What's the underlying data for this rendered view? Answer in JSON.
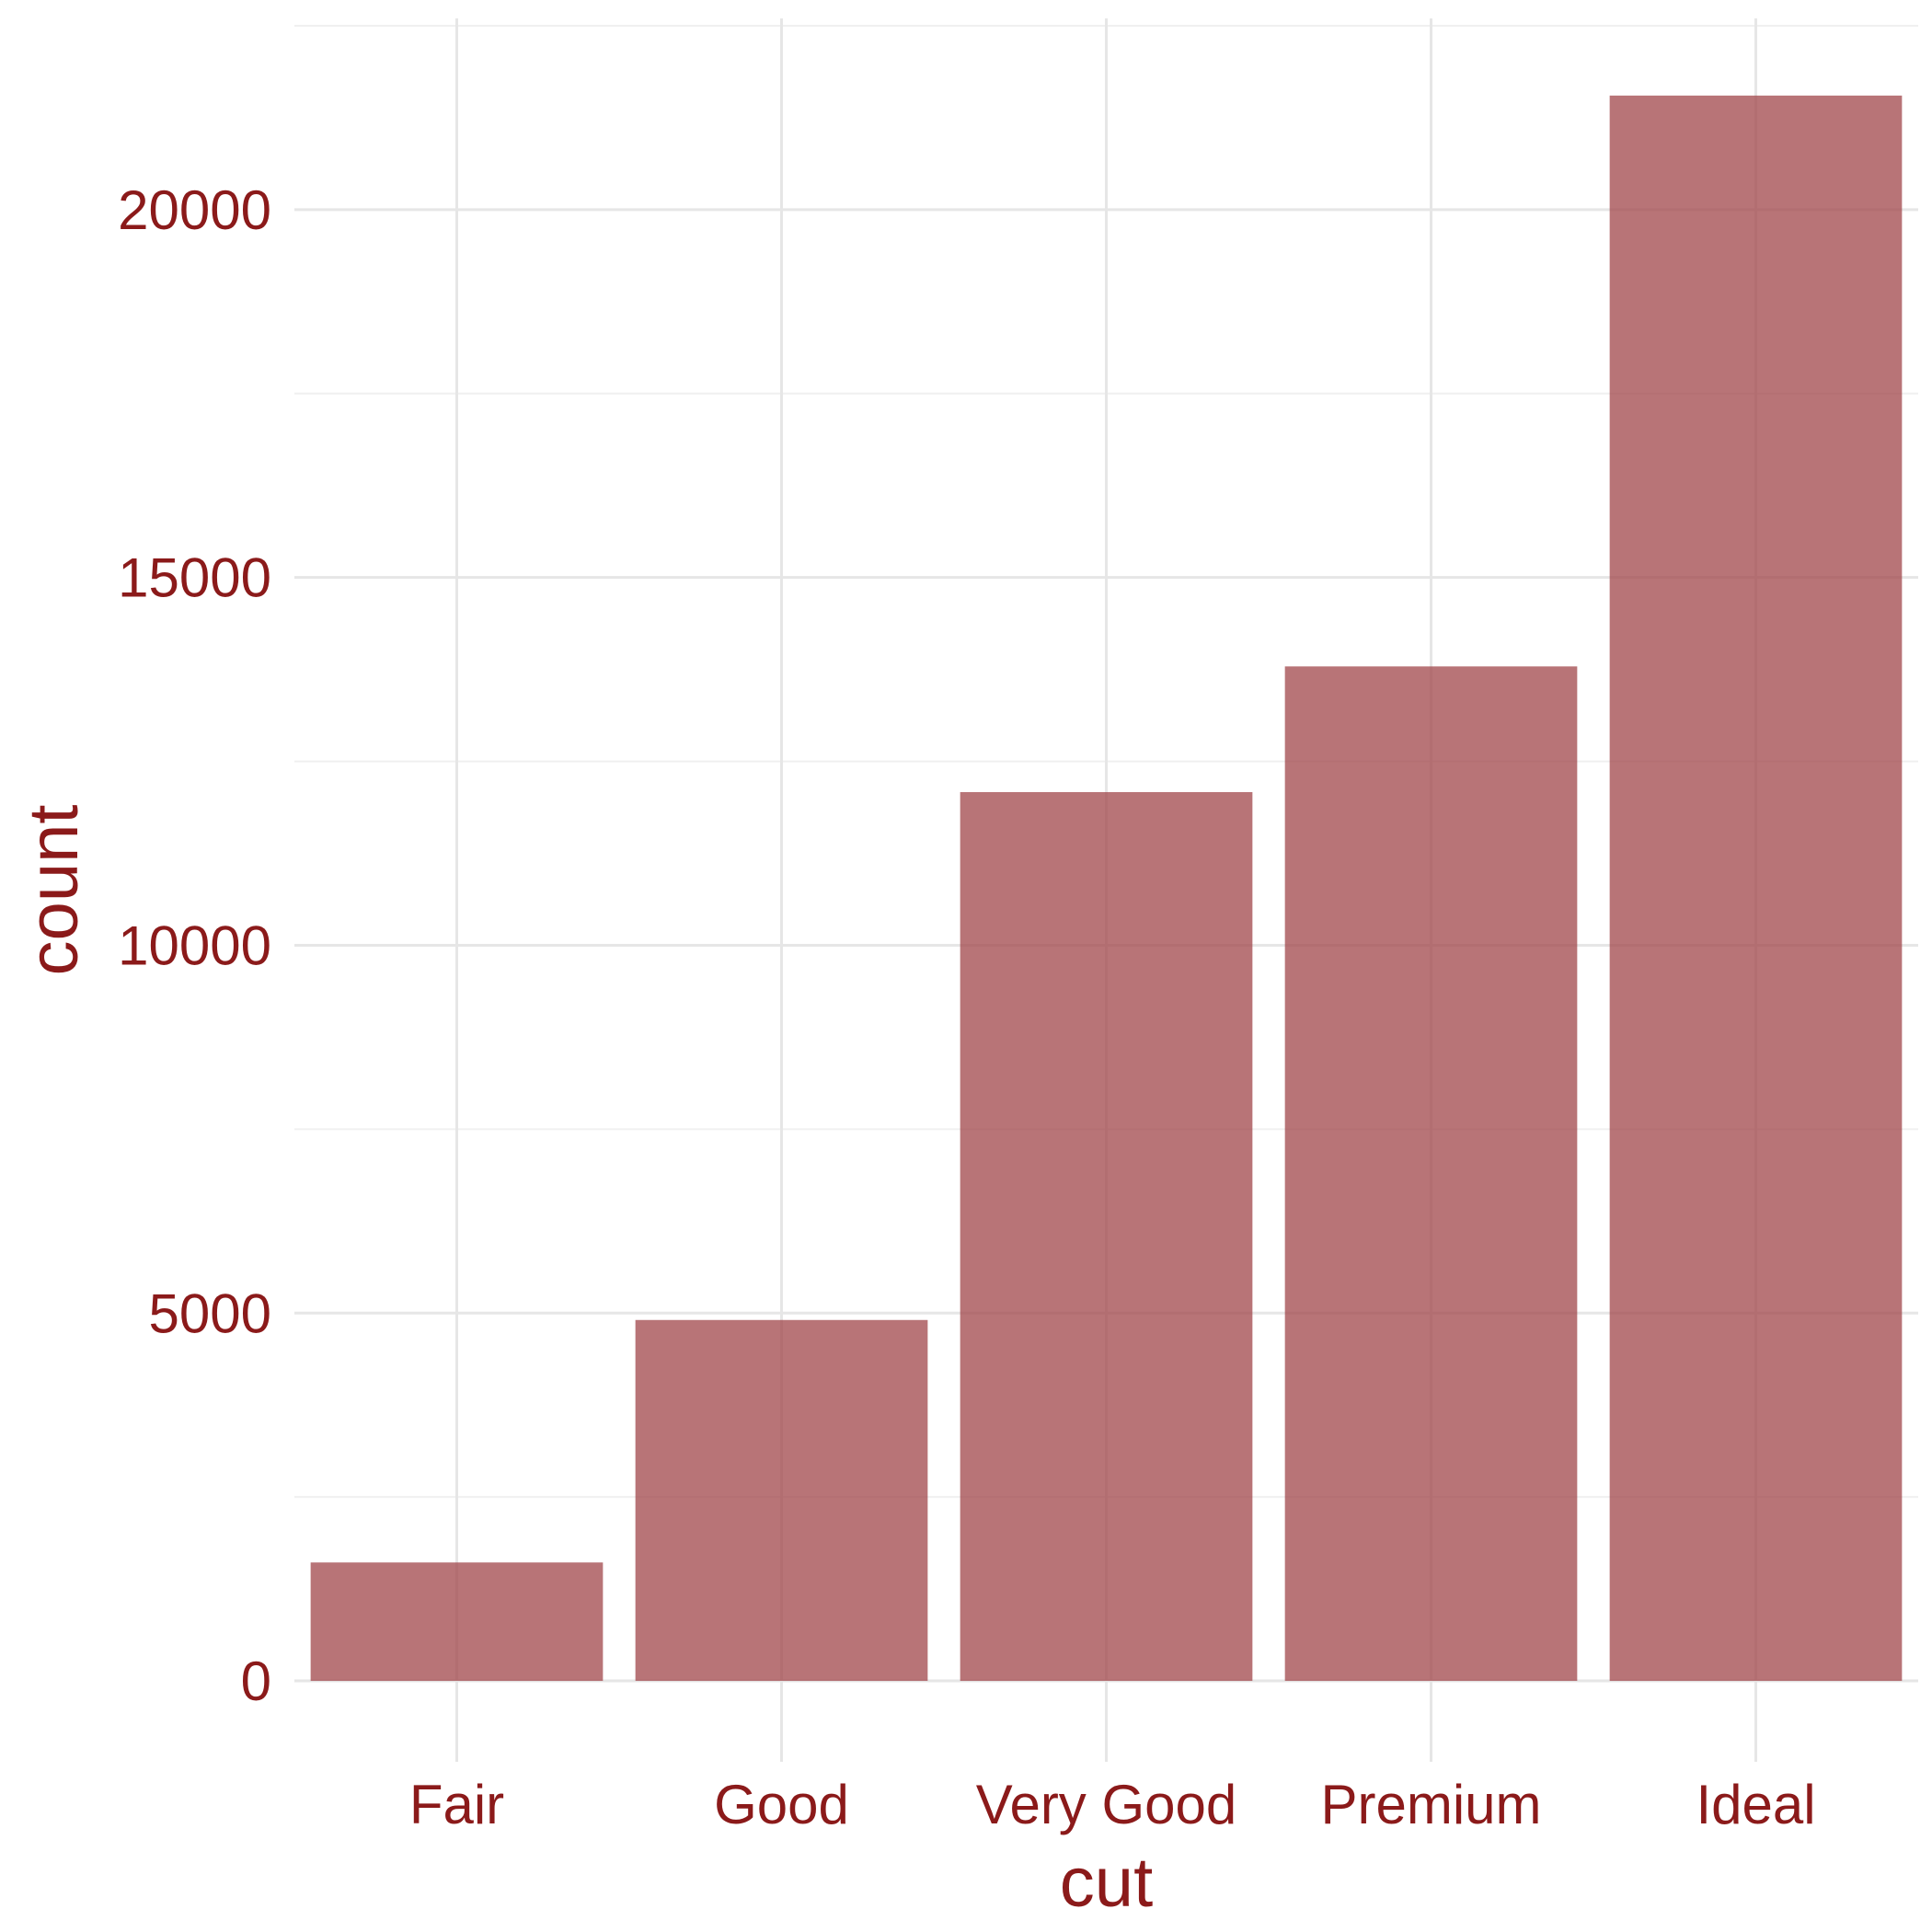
{
  "colors": {
    "text": "#8B1A1A",
    "bar_fill": "#A0454A",
    "bar_opacity": 0.75,
    "grid_major": "#E6E6E6",
    "grid_minor": "#F0F0F0",
    "background": "#FFFFFF"
  },
  "chart_data": {
    "type": "bar",
    "categories": [
      "Fair",
      "Good",
      "Very Good",
      "Premium",
      "Ideal"
    ],
    "values": [
      1610,
      4906,
      12082,
      13791,
      21551
    ],
    "title": "",
    "xlabel": "cut",
    "ylabel": "count",
    "ylim": [
      -1100,
      22600
    ],
    "yticks": [
      0,
      5000,
      10000,
      15000,
      20000
    ],
    "ytick_labels": [
      "0",
      "5000",
      "10000",
      "15000",
      "20000"
    ],
    "grid": true,
    "legend": "none"
  }
}
